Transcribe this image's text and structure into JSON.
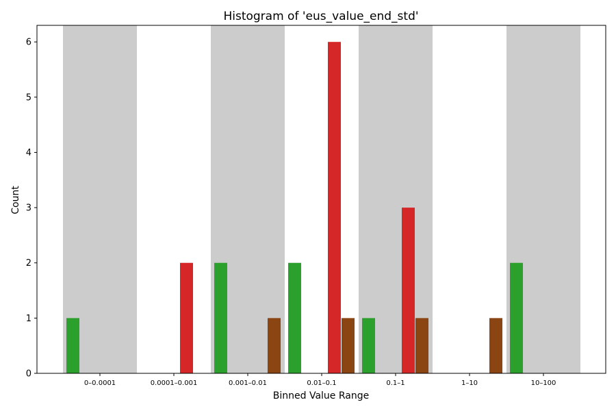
{
  "chart_data": {
    "type": "bar",
    "title": "Histogram of 'eus_value_end_std'",
    "xlabel": "Binned Value Range",
    "ylabel": "Count",
    "ylim": [
      0,
      6.3
    ],
    "yticks": [
      0,
      1,
      2,
      3,
      4,
      5,
      6
    ],
    "categories": [
      "0–0.0001",
      "0.0001–0.001",
      "0.001–0.01",
      "0.01–0.1",
      "0.1–1",
      "1–10",
      "10–100"
    ],
    "shaded_categories": [
      0,
      2,
      4,
      6
    ],
    "shade_color": "#cccccc",
    "grid": false,
    "legend": "none",
    "series": [
      {
        "color": "#2ca02c",
        "values": [
          1,
          0,
          2,
          2,
          1,
          0,
          2
        ]
      },
      {
        "color": "#d62728",
        "values": [
          0,
          2,
          0,
          6,
          3,
          0,
          0
        ]
      },
      {
        "color": "#8b4513",
        "values": [
          0,
          0,
          1,
          1,
          1,
          1,
          0
        ]
      }
    ]
  }
}
